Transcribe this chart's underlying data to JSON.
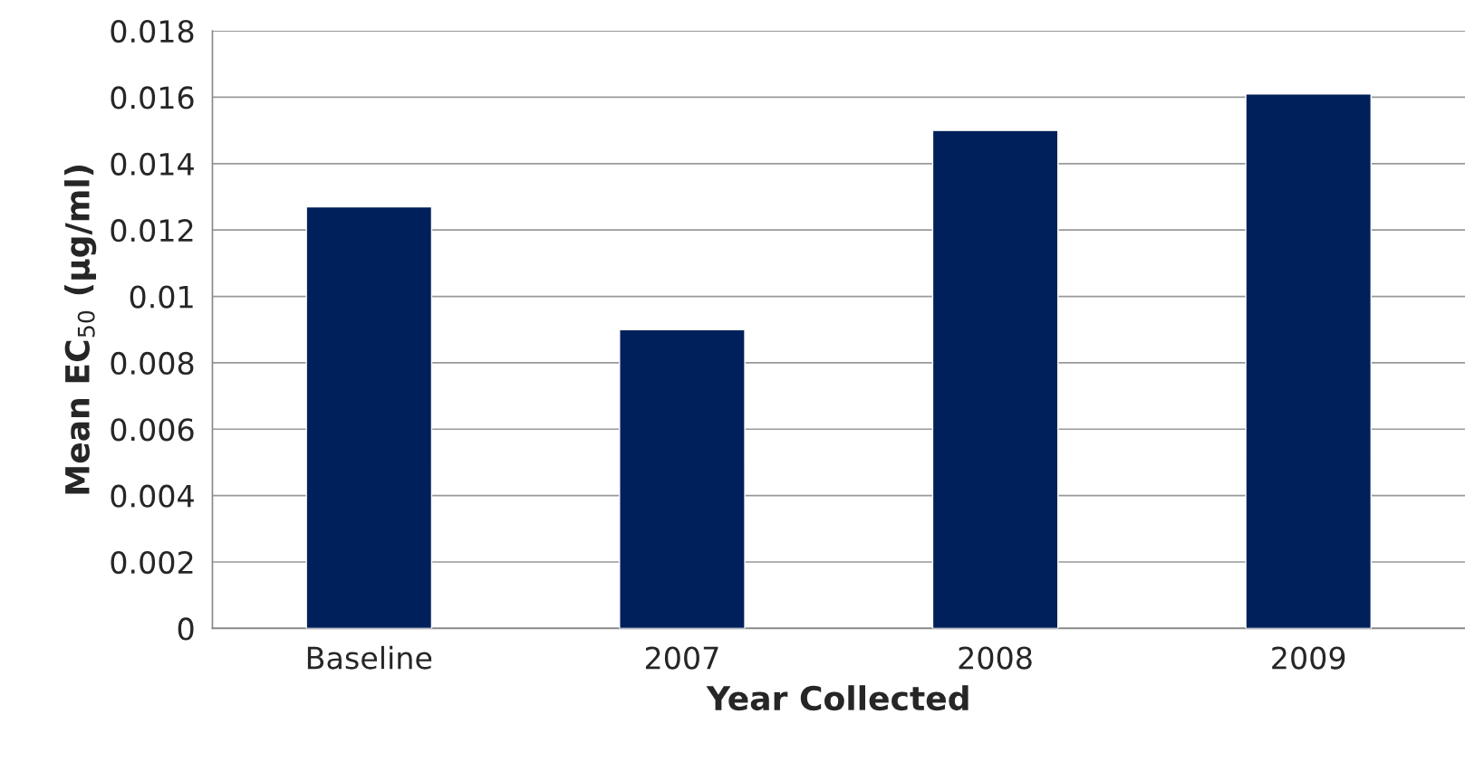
{
  "chart_data": {
    "type": "bar",
    "xlabel": "Year Collected",
    "ylabel": "Mean EC$_{50}$ (µg/ml)",
    "categories": [
      "Baseline",
      "2007",
      "2008",
      "2009"
    ],
    "values": [
      0.0127,
      0.009,
      0.015,
      0.0161
    ],
    "color": "#00205b",
    "ylim": [
      0,
      0.018
    ],
    "yticks": [
      0,
      0.002,
      0.004,
      0.006,
      0.008,
      0.01,
      0.012,
      0.014,
      0.016,
      0.018
    ],
    "grid": "y",
    "legend": false
  }
}
